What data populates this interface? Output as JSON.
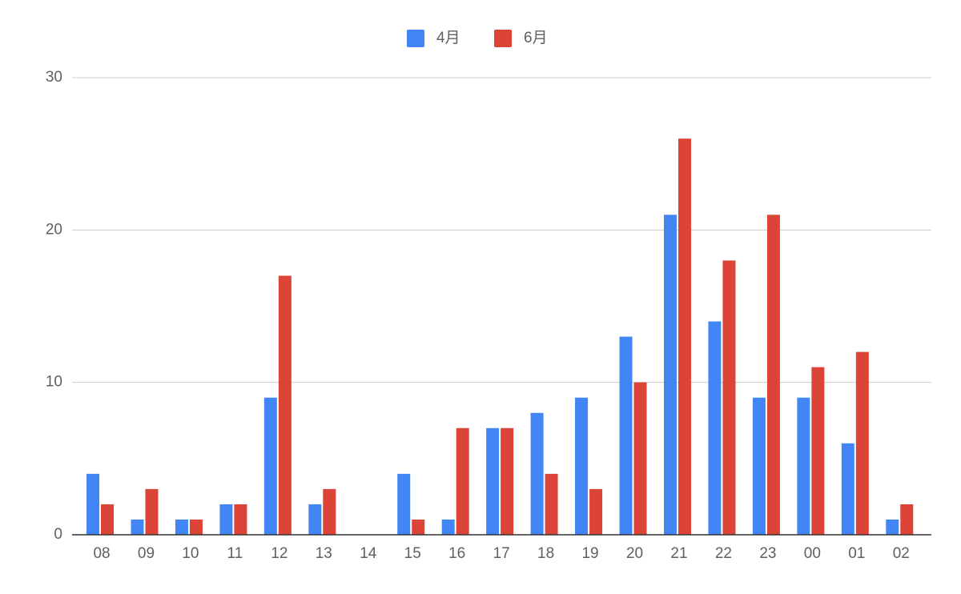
{
  "chart_data": {
    "type": "bar",
    "categories": [
      "08",
      "09",
      "10",
      "11",
      "12",
      "13",
      "14",
      "15",
      "16",
      "17",
      "18",
      "19",
      "20",
      "21",
      "22",
      "23",
      "00",
      "01",
      "02"
    ],
    "series": [
      {
        "name": "4月",
        "color": "#4285f4",
        "values": [
          4,
          1,
          1,
          2,
          9,
          2,
          0,
          4,
          1,
          7,
          8,
          9,
          13,
          21,
          14,
          9,
          9,
          6,
          1
        ]
      },
      {
        "name": "6月",
        "color": "#db4437",
        "values": [
          2,
          3,
          1,
          2,
          17,
          3,
          0,
          1,
          7,
          7,
          4,
          3,
          10,
          26,
          18,
          21,
          11,
          12,
          2
        ]
      }
    ],
    "ylim": [
      0,
      30
    ],
    "yticks": [
      0,
      10,
      20,
      30
    ],
    "grid": true,
    "legend": "top"
  }
}
